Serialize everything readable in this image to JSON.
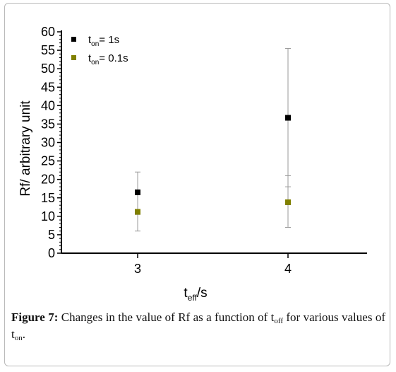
{
  "chart_data": {
    "type": "scatter",
    "categories": [
      "3",
      "4"
    ],
    "ylim": [
      0,
      60
    ],
    "yticks": [
      0,
      5,
      10,
      15,
      20,
      25,
      30,
      35,
      40,
      45,
      50,
      55,
      60
    ],
    "ylabel": "Rf/ arbitrary unit",
    "xlabel": {
      "main": "t",
      "sub": "eff",
      "tail": "/s"
    },
    "legend_position": "top-left",
    "series": [
      {
        "legend": {
          "main": "t",
          "sub": "on",
          "tail": "= 1s"
        },
        "color": "#000000",
        "values": [
          16.5,
          36.7
        ],
        "err_low": [
          10.5,
          18.0
        ],
        "err_high": [
          22.0,
          55.5
        ]
      },
      {
        "legend": {
          "main": "t",
          "sub": "on",
          "tail": "= 0.1s"
        },
        "color": "#808000",
        "values": [
          11.2,
          13.8
        ],
        "err_low": [
          6.0,
          7.0
        ],
        "err_high": [
          16.0,
          21.0
        ]
      }
    ]
  },
  "caption": {
    "label": "Figure 7:",
    "text_a": " Changes in the value of Rf as a function of t",
    "sub_a": "off",
    "text_b": " for various values of t",
    "sub_b": "on",
    "text_c": "."
  }
}
